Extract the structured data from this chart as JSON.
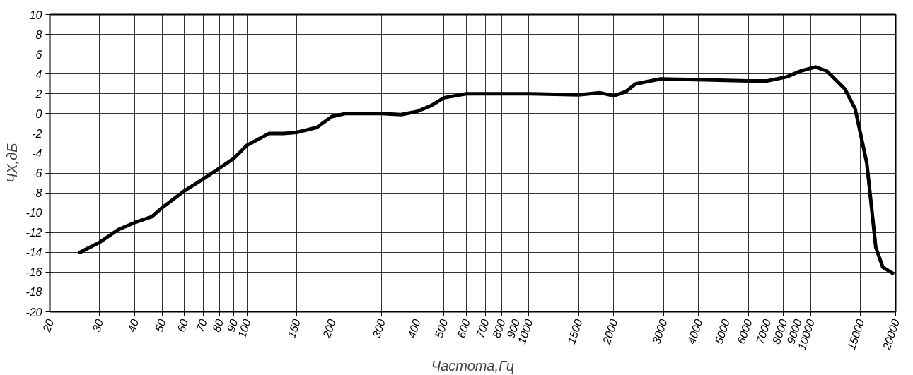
{
  "chart_data": {
    "type": "line",
    "xlabel": "Частота,Гц",
    "ylabel": "ЧХ,дБ",
    "log": "x",
    "xlim": [
      20,
      20000
    ],
    "ylim": [
      -20,
      10
    ],
    "xticks": [
      20,
      30,
      40,
      50,
      60,
      70,
      80,
      90,
      100,
      150,
      200,
      300,
      400,
      500,
      600,
      700,
      800,
      900,
      1000,
      1500,
      2000,
      3000,
      4000,
      5000,
      6000,
      7000,
      8000,
      9000,
      10000,
      15000,
      20000
    ],
    "yticks": [
      -20,
      -18,
      -16,
      -14,
      -12,
      -10,
      -8,
      -6,
      -4,
      -2,
      0,
      2,
      4,
      6,
      8,
      10
    ],
    "grid": true,
    "marker": "none",
    "line_style": "solid",
    "series": [
      {
        "color": "#000000",
        "x": [
          25.6,
          30,
          35,
          40,
          46,
          50,
          60,
          70,
          80,
          90,
          100,
          120,
          135,
          150,
          177,
          200,
          223,
          300,
          352,
          400,
          450,
          500,
          600,
          1000,
          1500,
          1790,
          2000,
          2200,
          2390,
          2930,
          4230,
          6000,
          7000,
          8200,
          9200,
          10400,
          11400,
          13200,
          14360,
          15000,
          15800,
          16500,
          17000,
          18000,
          19500
        ],
        "values": [
          -14,
          -13,
          -11.7,
          -11,
          -10.4,
          -9.5,
          -7.8,
          -6.6,
          -5.5,
          -4.5,
          -3.2,
          -2.0,
          -2.0,
          -1.9,
          -1.4,
          -0.3,
          0,
          0,
          -0.1,
          0.2,
          0.8,
          1.6,
          2.0,
          2.0,
          1.9,
          2.1,
          1.8,
          2.2,
          3.0,
          3.5,
          3.4,
          3.3,
          3.3,
          3.7,
          4.3,
          4.7,
          4.3,
          2.5,
          0.5,
          -2,
          -5,
          -10,
          -13.5,
          -15.5,
          -16.1
        ]
      }
    ]
  }
}
